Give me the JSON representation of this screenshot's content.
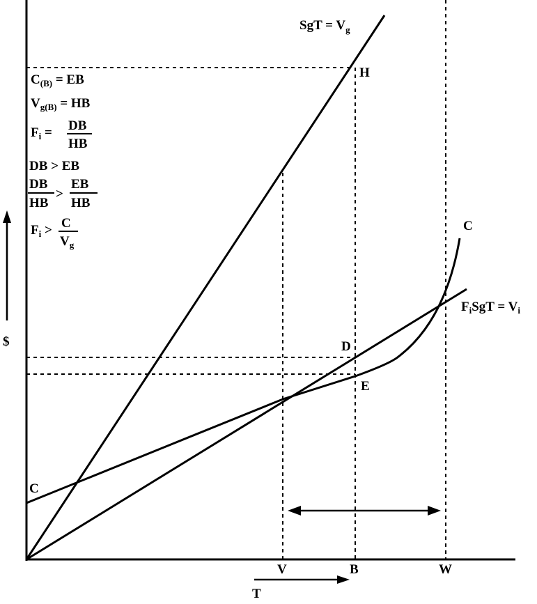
{
  "curve_labels": {
    "gross_line": {
      "main": "SgT = V",
      "sub": "g"
    },
    "net_line": {
      "pre": "F",
      "pre_sub": "i",
      "main": "SgT = V",
      "sub": "i"
    },
    "cost_top": "C",
    "cost_intercept": "C"
  },
  "points": {
    "H": "H",
    "D": "D",
    "E": "E"
  },
  "axes": {
    "y_label": "$",
    "x_label": "T",
    "x_ticks": [
      "V",
      "B",
      "W"
    ]
  },
  "equations": {
    "line1": {
      "a": "C",
      "a_sub": "(B)",
      "rest": " = EB"
    },
    "line2": {
      "a": "V",
      "a_sub": "g(B)",
      "rest": " = HB"
    },
    "line3": {
      "a": "F",
      "a_sub": "i",
      "eq": " =",
      "num": "DB",
      "den": "HB"
    },
    "line4": "DB > EB",
    "line5": {
      "num1": "DB",
      "den1": "HB",
      "op": ">",
      "num2": "EB",
      "den2": "HB"
    },
    "line6": {
      "a": "F",
      "a_sub": "i",
      "op": " >",
      "num": "C",
      "den": "V",
      "den_sub": "g"
    }
  }
}
